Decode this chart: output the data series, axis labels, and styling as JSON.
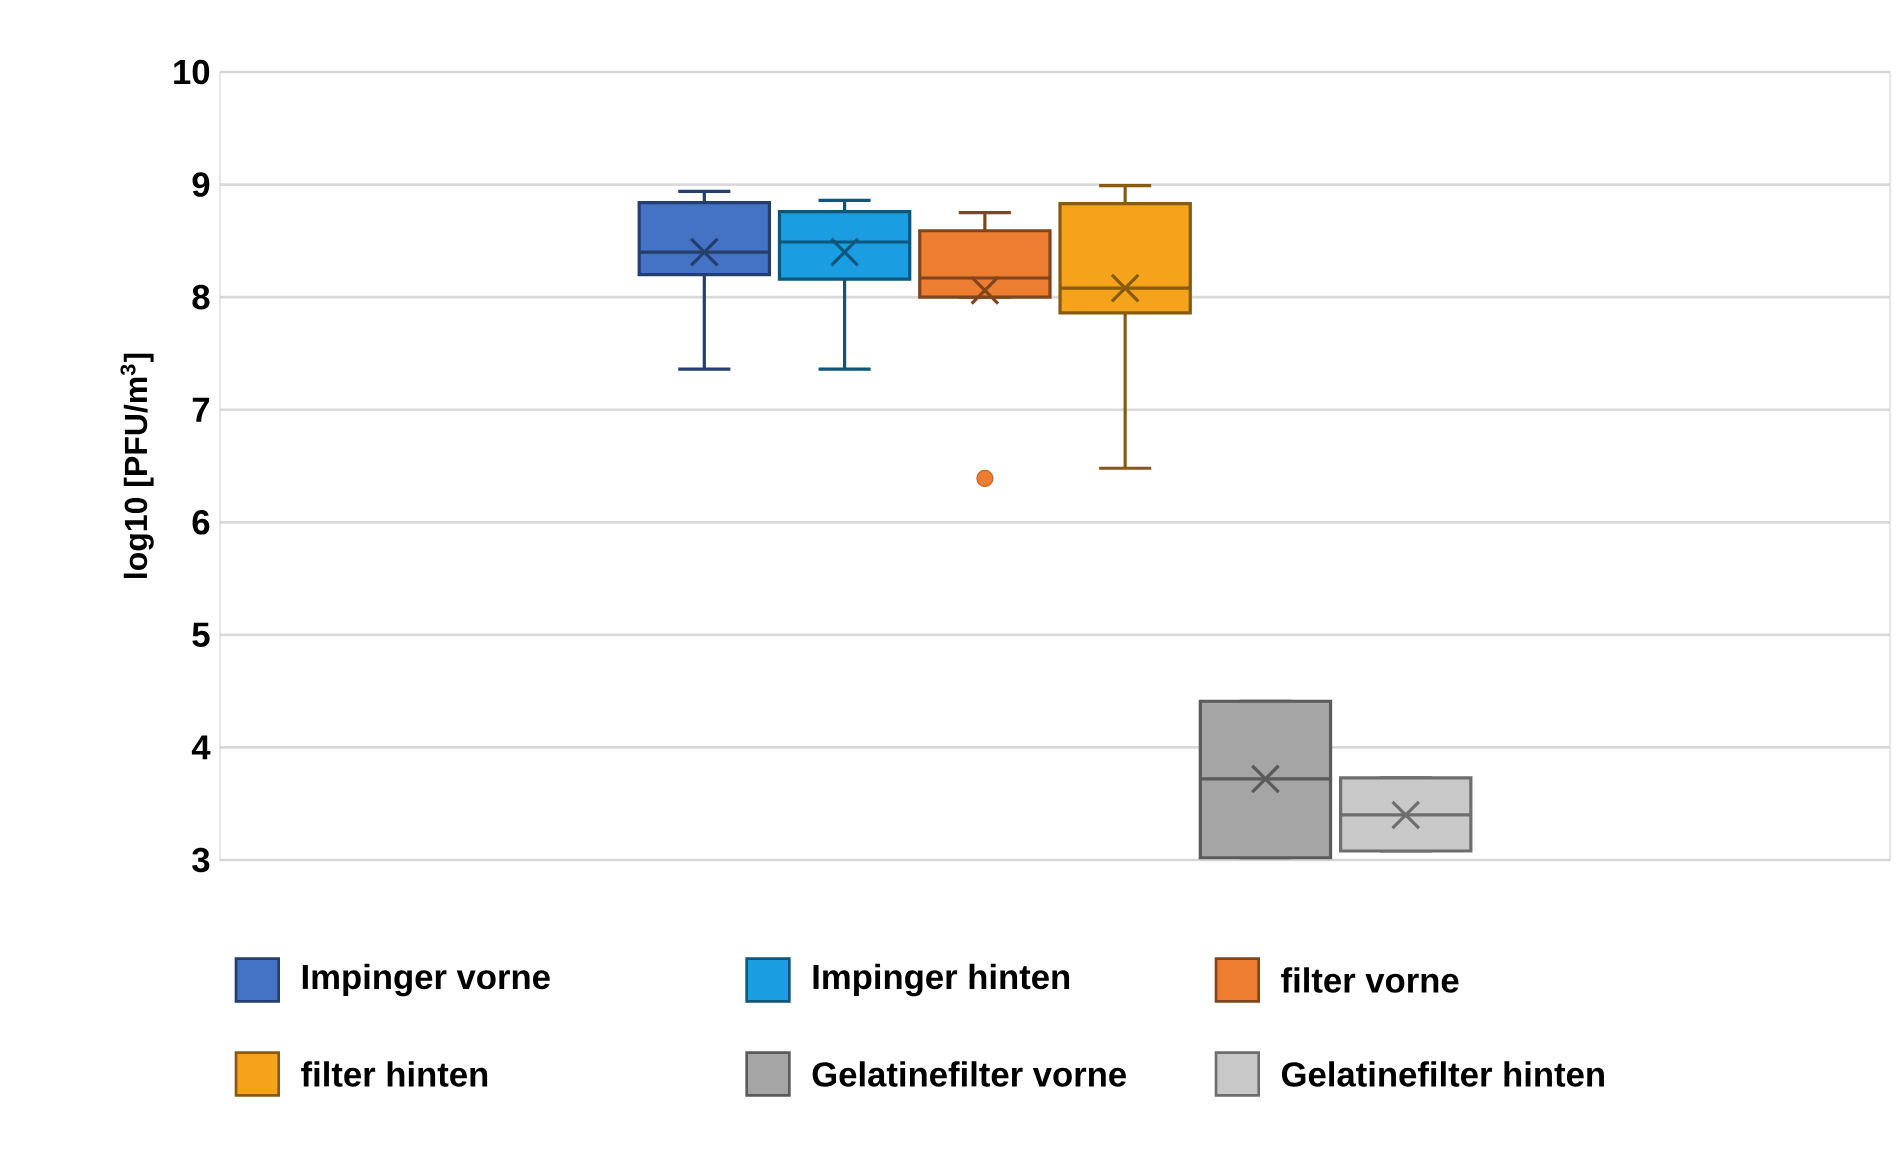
{
  "chart_data": {
    "type": "box",
    "ylabel": "log10 [PFU/m$^{3}$]",
    "categories": [
      null
    ],
    "ylim": [
      3,
      10
    ],
    "yticks": [
      3,
      4,
      5,
      6,
      7,
      8,
      9,
      10
    ],
    "grid": "y",
    "legend": "bottom",
    "series": [
      {
        "name": "Impinger vorne",
        "color": "#4472c4",
        "boxes": [
          {
            "low": 7.36,
            "q1": 8.2,
            "median": 8.4,
            "q3": 8.84,
            "high": 8.94,
            "mean": 8.4
          }
        ]
      },
      {
        "name": "Impinger hinten",
        "color": "#1b9de2",
        "boxes": [
          {
            "low": 7.36,
            "q1": 8.16,
            "median": 8.49,
            "q3": 8.76,
            "high": 8.86,
            "mean": 8.4
          }
        ]
      },
      {
        "name": "filter vorne",
        "color": "#ed7d31",
        "boxes": [
          {
            "low": 8.0,
            "q1": 8.0,
            "median": 8.17,
            "q3": 8.59,
            "high": 8.75,
            "mean": 8.06,
            "outliers": [
              6.39
            ]
          }
        ]
      },
      {
        "name": "filter hinten",
        "color": "#f5a31a",
        "boxes": [
          {
            "low": 6.48,
            "q1": 7.86,
            "median": 8.08,
            "q3": 8.83,
            "high": 8.99,
            "mean": 8.08
          }
        ]
      },
      {
        "name": "Gelatinefilter vorne",
        "color": "#a5a5a5",
        "boxes": [
          {
            "low": 3.02,
            "q1": 3.02,
            "median": 3.72,
            "q3": 4.41,
            "high": 4.41,
            "mean": 3.72
          }
        ]
      },
      {
        "name": "Gelatinefilter hinten",
        "color": "#c8c8c8",
        "boxes": [
          {
            "low": 3.08,
            "q1": 3.08,
            "median": 3.4,
            "q3": 3.73,
            "high": 3.73,
            "mean": 3.4
          }
        ]
      }
    ]
  }
}
